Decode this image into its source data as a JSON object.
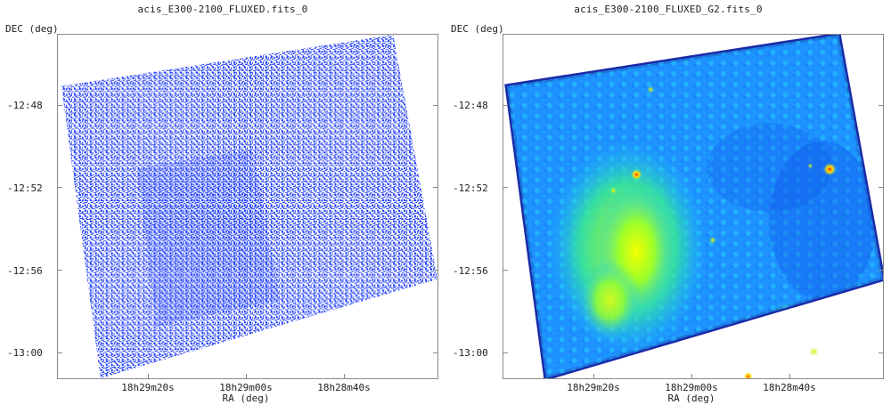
{
  "panels": [
    {
      "title": "acis_E300-2100_FLUXED.fits_0",
      "ylabel": "DEC (deg)",
      "xlabel": "RA (deg)",
      "yticks": [
        "-12:48",
        "-12:52",
        "-12:56",
        "-13:00"
      ],
      "xticks": [
        "18h29m20s",
        "18h29m00s",
        "18h28m40s"
      ]
    },
    {
      "title": "acis_E300-2100_FLUXED_G2.fits_0",
      "ylabel": "DEC (deg)",
      "xlabel": "RA (deg)",
      "yticks": [
        "-12:48",
        "-12:52",
        "-12:56",
        "-13:00"
      ],
      "xticks": [
        "18h29m20s",
        "18h29m00s",
        "18h28m40s"
      ]
    }
  ],
  "colors": {
    "raw_counts": "#1e3cff",
    "smoothed_low": "#1e6bff",
    "smoothed_mid": "#19c8ff",
    "smoothed_high": "#e8ff00",
    "point_source": "#ff2a00"
  }
}
